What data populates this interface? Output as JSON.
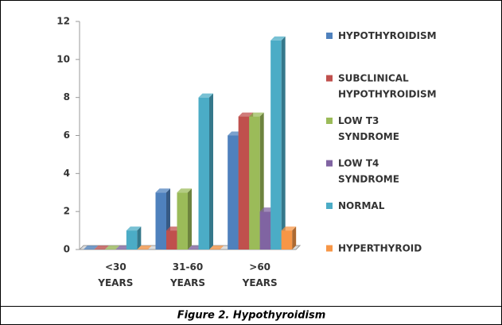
{
  "chart_data": {
    "type": "bar3d",
    "caption": "Figure 2. Hypothyroidism",
    "categories": [
      "<30 YEARS",
      "31-60 YEARS",
      ">60 YEARS"
    ],
    "series": [
      {
        "name": "HYPOTHYROIDISM",
        "color": "#4f81bd",
        "values": [
          0,
          3,
          6
        ]
      },
      {
        "name": "SUBCLINICAL HYPOTHYROIDISM",
        "color": "#c0504d",
        "values": [
          0,
          1,
          7
        ]
      },
      {
        "name": "LOW T3 SYNDROME",
        "color": "#9bbb59",
        "values": [
          0,
          3,
          7
        ]
      },
      {
        "name": "LOW T4 SYNDROME",
        "color": "#8064a2",
        "values": [
          0,
          0,
          2
        ]
      },
      {
        "name": "NORMAL",
        "color": "#4bacc6",
        "values": [
          1,
          8,
          11
        ]
      },
      {
        "name": "HYPERTHYROID",
        "color": "#f79646",
        "values": [
          0,
          0,
          1
        ]
      }
    ],
    "ylim": [
      0,
      12
    ],
    "yticks": [
      0,
      2,
      4,
      6,
      8,
      10,
      12
    ],
    "legend": "right"
  }
}
